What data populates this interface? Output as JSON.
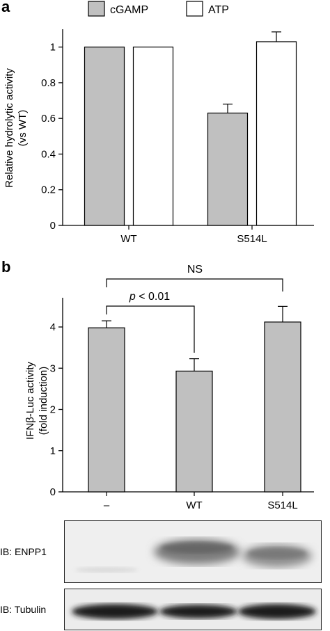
{
  "panel_a": {
    "letter": "a",
    "legend": [
      {
        "name": "cGAMP",
        "color": "#c0c0c0"
      },
      {
        "name": "ATP",
        "color": "#ffffff"
      }
    ],
    "chart_data": {
      "type": "bar",
      "categories": [
        "WT",
        "S514L"
      ],
      "series": [
        {
          "name": "cGAMP",
          "values": [
            1.0,
            0.63
          ],
          "errors": [
            0,
            0.05
          ]
        },
        {
          "name": "ATP",
          "values": [
            1.0,
            1.03
          ],
          "errors": [
            0,
            0.055
          ]
        }
      ],
      "ylabel_line1": "Relative hydrolytic activity",
      "ylabel_line2": "(vs WT)",
      "ylim": [
        0,
        1.1
      ],
      "yticks": [
        "0",
        "0.2",
        "0.4",
        "0.6",
        "0.8",
        "1"
      ],
      "ytick_values": [
        0,
        0.2,
        0.4,
        0.6,
        0.8,
        1.0
      ],
      "legend_position": "top"
    }
  },
  "panel_b": {
    "letter": "b",
    "chart_data": {
      "type": "bar",
      "categories": [
        "–",
        "WT",
        "S514L"
      ],
      "values": [
        3.98,
        2.93,
        4.12
      ],
      "errors": [
        0.17,
        0.3,
        0.38
      ],
      "ylabel_line1": "IFNβ-Luc activity",
      "ylabel_line2": "(fold induction)",
      "ylim": [
        0,
        4.8
      ],
      "yticks": [
        "0",
        "1",
        "2",
        "3",
        "4"
      ],
      "ytick_values": [
        0,
        1,
        2,
        3,
        4
      ],
      "bar_color": "#c0c0c0",
      "annotations": [
        {
          "text": "NS",
          "from": 0,
          "to": 2
        },
        {
          "text_italic": "p",
          "text_rest": " < 0.01",
          "from": 0,
          "to": 1
        }
      ]
    },
    "blots": [
      {
        "label": "IB: ENPP1"
      },
      {
        "label": "IB: Tubulin"
      }
    ]
  }
}
